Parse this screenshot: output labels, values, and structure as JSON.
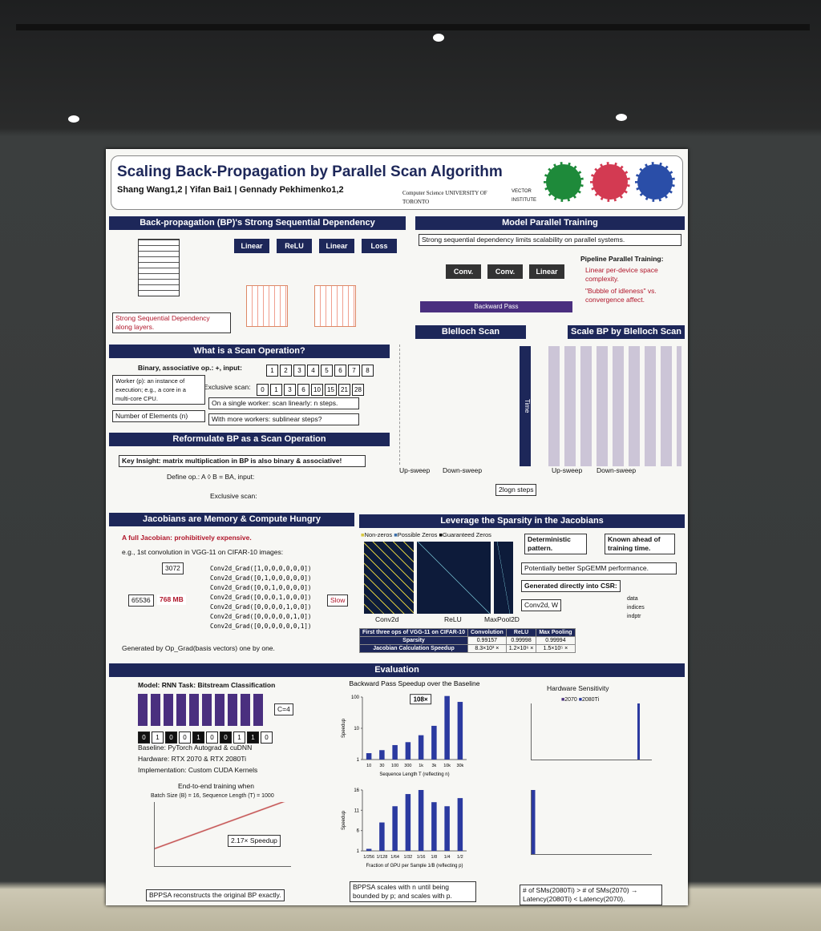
{
  "header": {
    "title": "Scaling Back-Propagation by Parallel Scan Algorithm",
    "authors": "Shang Wang1,2 | Yifan Bai1 | Gennady Pekhimenko1,2",
    "affiliation_1": "Computer Science UNIVERSITY OF TORONTO",
    "affiliation_2": "VECTOR INSTITUTE"
  },
  "sections": {
    "bp": {
      "title": "Back-propagation (BP)'s Strong Sequential Dependency",
      "layers": [
        "Linear",
        "ReLU",
        "Linear",
        "Loss"
      ],
      "note": "Strong Sequential Dependency along layers."
    },
    "mp": {
      "title": "Model Parallel Training",
      "note": "Strong sequential dependency limits scalability on parallel systems.",
      "devices": [
        "Conv.",
        "Conv.",
        "Linear"
      ],
      "backward": "Backward Pass",
      "pipeline_title": "Pipeline Parallel Training:",
      "bullets": [
        "Linear per-device space complexity.",
        "\"Bubble of idleness\" vs. convergence affect."
      ]
    },
    "scan": {
      "title": "What is a Scan Operation?",
      "op": "Binary, associative op.: +, input:",
      "input": [
        "1",
        "2",
        "3",
        "4",
        "5",
        "6",
        "7",
        "8"
      ],
      "exclusive_label": "Exclusive scan:",
      "exclusive": [
        "0",
        "1",
        "3",
        "6",
        "10",
        "15",
        "21",
        "28"
      ],
      "worker": "Worker (p): an instance of execution; e.g., a core in a multi-core CPU.",
      "elements": "Number of Elements (n)",
      "single": "On a single worker: scan linearly: n steps.",
      "more": "With more workers: sublinear steps?"
    },
    "blelloch": {
      "title": "Blelloch Scan",
      "upsweep": "Up-sweep",
      "downsweep": "Down-sweep",
      "steps": "2logn steps",
      "time": "Time"
    },
    "scale": {
      "title": "Scale BP by Blelloch Scan",
      "upsweep": "Up-sweep",
      "downsweep": "Down-sweep"
    },
    "reform": {
      "title": "Reformulate BP as a Scan Operation",
      "insight": "Key Insight: matrix multiplication in BP is also binary & associative!",
      "define": "Define op.: A ◊ B = BA, input:",
      "exclusive": "Exclusive scan:"
    },
    "jacobian": {
      "title": "Jacobians are Memory & Compute Hungry",
      "line1": "A full Jacobian: prohibitively expensive.",
      "line2": "e.g., 1st convolution in VGG-11 on CIFAR-10 images:",
      "dim_in": "3072",
      "dim_out": "65536",
      "size": "768 MB",
      "grads": [
        "Conv2d_Grad([1,0,0,0,0,0,0])",
        "Conv2d_Grad([0,1,0,0,0,0,0])",
        "Conv2d_Grad([0,0,1,0,0,0,0])",
        "Conv2d_Grad([0,0,0,1,0,0,0])",
        "Conv2d_Grad([0,0,0,0,1,0,0])",
        "Conv2d_Grad([0,0,0,0,0,1,0])",
        "Conv2d_Grad([0,0,0,0,0,0,1])"
      ],
      "slow": "Slow",
      "footer": "Generated by Op_Grad(basis vectors) one by one."
    },
    "sparsity": {
      "title": "Leverage the Sparsity in the Jacobians",
      "legend": [
        "Non-zeros",
        "Possible Zeros",
        "Guaranteed Zeros"
      ],
      "panels": [
        "Conv2d",
        "ReLU",
        "MaxPool2D"
      ],
      "notes": [
        "Deterministic pattern.",
        "Known ahead of training time.",
        "Potentially better SpGEMM performance.",
        "Generated directly into CSR:",
        "Conv2d, W"
      ],
      "csr": [
        "data",
        "indices",
        "indptr"
      ],
      "table": {
        "header": [
          "First three ops of VGG-11 on CIFAR-10",
          "Convolution",
          "ReLU",
          "Max Pooling"
        ],
        "rows": [
          [
            "Sparsity",
            "0.99157",
            "0.99998",
            "0.99994"
          ],
          [
            "Jacobian Calculation Speedup",
            "8.3×10³ ×",
            "1.2×10⁶ ×",
            "1.5×10⁵ ×"
          ]
        ]
      }
    },
    "eval": {
      "title": "Evaluation",
      "model": "Model: RNN   Task: Bitstream Classification",
      "bits": [
        "0",
        "1",
        "0",
        "0",
        "1",
        "0",
        "0",
        "1",
        "1",
        "0"
      ],
      "class": "C=4",
      "baseline": "Baseline: PyTorch Autograd & cuDNN",
      "hardware": "Hardware: RTX 2070 & RTX 2080Ti",
      "impl": "Implementation: Custom CUDA Kernels",
      "e2e": "End-to-end training when",
      "e2e_sub": "Batch Size (B) = 16, Sequence Length (T) = 1000",
      "e2e_speedup": "2.17× Speedup",
      "left_note": "BPPSA reconstructs the original BP exactly.",
      "hw_title": "Hardware Sensitivity",
      "hw_legend": [
        "2070",
        "2080Ti"
      ],
      "mid_note": "BPPSA scales with n until being bounded by p; and scales with p.",
      "right_note": "# of SMs(2080Ti) > # of SMs(2070) → Latency(2080Ti) < Latency(2070)."
    }
  },
  "charts": [
    {
      "type": "bar",
      "title": "Backward Pass Speedup over the Baseline",
      "x_label": "Sequence Length T (reflecting n)",
      "y_label": "Speedup",
      "categories": [
        "10",
        "30",
        "100",
        "300",
        "1k",
        "3k",
        "10k",
        "30k"
      ],
      "values": [
        1.6,
        2.0,
        2.9,
        3.6,
        6,
        12,
        108,
        70
      ],
      "annotation": "108×",
      "color": "#2b3aa0",
      "log_y": true,
      "ylim": [
        1,
        100
      ],
      "yticks": [
        1,
        10,
        100
      ]
    },
    {
      "type": "bar",
      "x_label": "Fraction of GPU per Sample 1/B (reflecting p)",
      "y_label": "Speedup",
      "categories": [
        "1/256",
        "1/128",
        "1/64",
        "1/32",
        "1/16",
        "1/8",
        "1/4",
        "1/2"
      ],
      "values": [
        1.5,
        8,
        12,
        15,
        16,
        13,
        12,
        14
      ],
      "color": "#2b3aa0",
      "log_y": false,
      "ylim": [
        1,
        16
      ],
      "yticks": [
        1,
        6,
        11,
        16
      ]
    }
  ]
}
